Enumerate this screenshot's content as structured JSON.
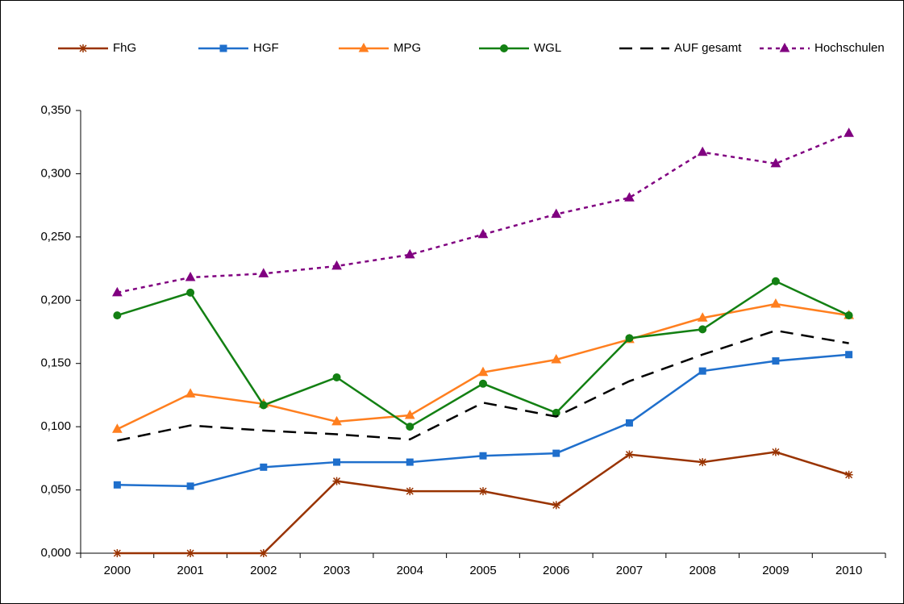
{
  "chart_data": {
    "type": "line",
    "categories": [
      "2000",
      "2001",
      "2002",
      "2003",
      "2004",
      "2005",
      "2006",
      "2007",
      "2008",
      "2009",
      "2010"
    ],
    "series": [
      {
        "name": "FhG",
        "color": "#993300",
        "marker": "star",
        "dash": "solid",
        "values": [
          0,
          0,
          0,
          0.057,
          0.049,
          0.049,
          0.038,
          0.078,
          0.072,
          0.08,
          0.062
        ]
      },
      {
        "name": "HGF",
        "color": "#1f6fcc",
        "marker": "square",
        "dash": "solid",
        "values": [
          0.054,
          0.053,
          0.068,
          0.072,
          0.072,
          0.077,
          0.079,
          0.103,
          0.144,
          0.152,
          0.157
        ]
      },
      {
        "name": "MPG",
        "color": "#ff7f1f",
        "marker": "triangle",
        "dash": "solid",
        "values": [
          0.098,
          0.126,
          0.118,
          0.104,
          0.109,
          0.143,
          0.153,
          0.169,
          0.186,
          0.197,
          0.188
        ]
      },
      {
        "name": "WGL",
        "color": "#138013",
        "marker": "circle",
        "dash": "solid",
        "values": [
          0.188,
          0.206,
          0.117,
          0.139,
          0.1,
          0.134,
          0.111,
          0.17,
          0.177,
          0.215,
          0.188
        ]
      },
      {
        "name": "AUF gesamt",
        "color": "#000000",
        "marker": "none",
        "dash": "long",
        "values": [
          0.089,
          0.101,
          0.097,
          0.094,
          0.09,
          0.119,
          0.108,
          0.136,
          0.157,
          0.176,
          0.166
        ]
      },
      {
        "name": "Hochschulen",
        "color": "#800080",
        "marker": "triangle",
        "dash": "short",
        "values": [
          0.206,
          0.218,
          0.221,
          0.227,
          0.236,
          0.252,
          0.268,
          0.281,
          0.317,
          0.308,
          0.332
        ]
      }
    ],
    "ylim": [
      0,
      0.35
    ],
    "yticks": [
      {
        "value": 0,
        "label": "0,000"
      },
      {
        "value": 0.05,
        "label": "0,050"
      },
      {
        "value": 0.1,
        "label": "0,100"
      },
      {
        "value": 0.15,
        "label": "0,150"
      },
      {
        "value": 0.2,
        "label": "0,200"
      },
      {
        "value": 0.25,
        "label": "0,250"
      },
      {
        "value": 0.3,
        "label": "0,300"
      },
      {
        "value": 0.35,
        "label": "0,350"
      }
    ],
    "grid": false,
    "legend": "top"
  }
}
